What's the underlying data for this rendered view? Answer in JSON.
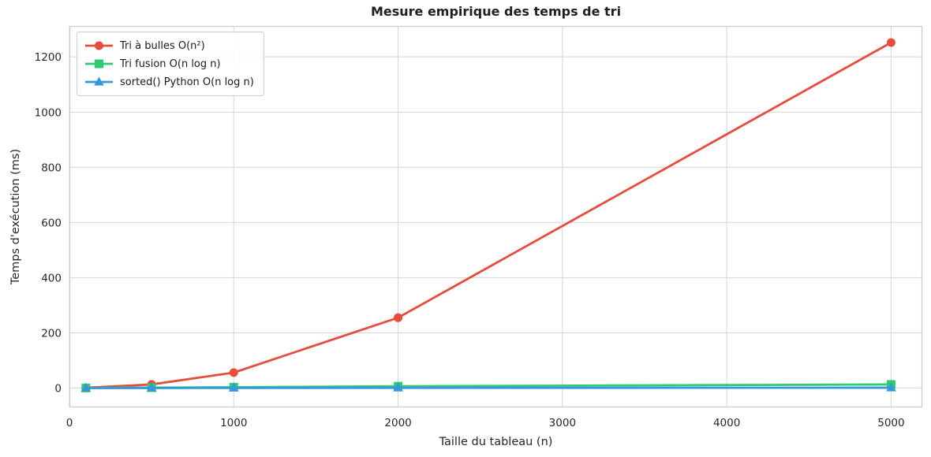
{
  "chart_data": {
    "type": "line",
    "title": "Mesure empirique des temps de tri",
    "xlabel": "Taille du tableau (n)",
    "ylabel": "Temps d'exécution (ms)",
    "x": [
      100,
      500,
      1000,
      2000,
      5000
    ],
    "series": [
      {
        "name": "Tri à bulles O(n²)",
        "color": "#e74c3c",
        "marker": "circle",
        "values": [
          1.2,
          13,
          56,
          255,
          1252
        ]
      },
      {
        "name": "Tri fusion O(n log n)",
        "color": "#2ecc71",
        "marker": "square",
        "values": [
          0.3,
          1.5,
          3.2,
          6.5,
          13
        ]
      },
      {
        "name": "sorted() Python O(n log n)",
        "color": "#3498db",
        "marker": "triangle",
        "values": [
          0.02,
          0.12,
          0.3,
          0.7,
          1.2
        ]
      }
    ],
    "xticks": [
      0,
      1000,
      2000,
      3000,
      4000,
      5000
    ],
    "yticks": [
      0,
      200,
      400,
      600,
      800,
      1000,
      1200
    ],
    "xlim": [
      0,
      5190
    ],
    "ylim": [
      -70,
      1312
    ],
    "grid": true,
    "legend_position": "upper-left",
    "colors": {
      "grid": "#d9d9d9",
      "spine": "#c9c9c9",
      "tick_text": "#262626",
      "title_text": "#1f1f1f",
      "background": "#ffffff"
    }
  }
}
